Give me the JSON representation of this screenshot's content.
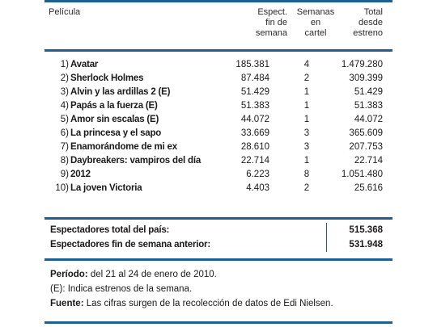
{
  "header": {
    "pelicula": "Película",
    "espect_lines": [
      "Espect.",
      "fin de",
      "semana"
    ],
    "semanas_lines": [
      "Semanas",
      "en",
      "cartel"
    ],
    "total_lines": [
      "Total",
      "desde",
      "estreno"
    ]
  },
  "rows": [
    {
      "num": "1)",
      "title": "Avatar",
      "espect": "185.381",
      "semanas": "4",
      "total": "1.479.280"
    },
    {
      "num": "2)",
      "title": "Sherlock Holmes",
      "espect": "87.484",
      "semanas": "2",
      "total": "309.399"
    },
    {
      "num": "3)",
      "title": "Alvin y las ardillas 2 (E)",
      "espect": "51.429",
      "semanas": "1",
      "total": "51.429"
    },
    {
      "num": "4)",
      "title": "Papás a la fuerza (E)",
      "espect": "51.383",
      "semanas": "1",
      "total": "51.383"
    },
    {
      "num": "5)",
      "title": "Amor sin escalas (E)",
      "espect": "44.072",
      "semanas": "1",
      "total": "44.072"
    },
    {
      "num": "6)",
      "title": "La princesa y el sapo",
      "espect": "33.669",
      "semanas": "3",
      "total": "365.609"
    },
    {
      "num": "7)",
      "title": "Enamorándome de mi ex",
      "espect": "28.610",
      "semanas": "3",
      "total": "207.753"
    },
    {
      "num": "8)",
      "title": "Daybreakers: vampiros del día",
      "espect": "22.714",
      "semanas": "1",
      "total": "22.714"
    },
    {
      "num": "9)",
      "title": "2012",
      "espect": "6.223",
      "semanas": "8",
      "total": "1.051.480"
    },
    {
      "num": "10)",
      "title": "La joven Victoria",
      "espect": "4.403",
      "semanas": "2",
      "total": "25.616"
    }
  ],
  "totals": {
    "pais_label": "Espectadores total del país:",
    "pais_value": "515.368",
    "anterior_label": "Espectadores fin de semana anterior:",
    "anterior_value": "531.948"
  },
  "notes": {
    "periodo_label": "Período:",
    "periodo_text": " del 21 al 24 de enero de 2010.",
    "estrenos_label": "(E):",
    "estrenos_text": " Indica estrenos de la semana.",
    "fuente_label": "Fuente:",
    "fuente_text": " Las cifras surgen de la recolección de datos de Edi Nielsen."
  },
  "colors": {
    "rule": "#1d5f95"
  }
}
